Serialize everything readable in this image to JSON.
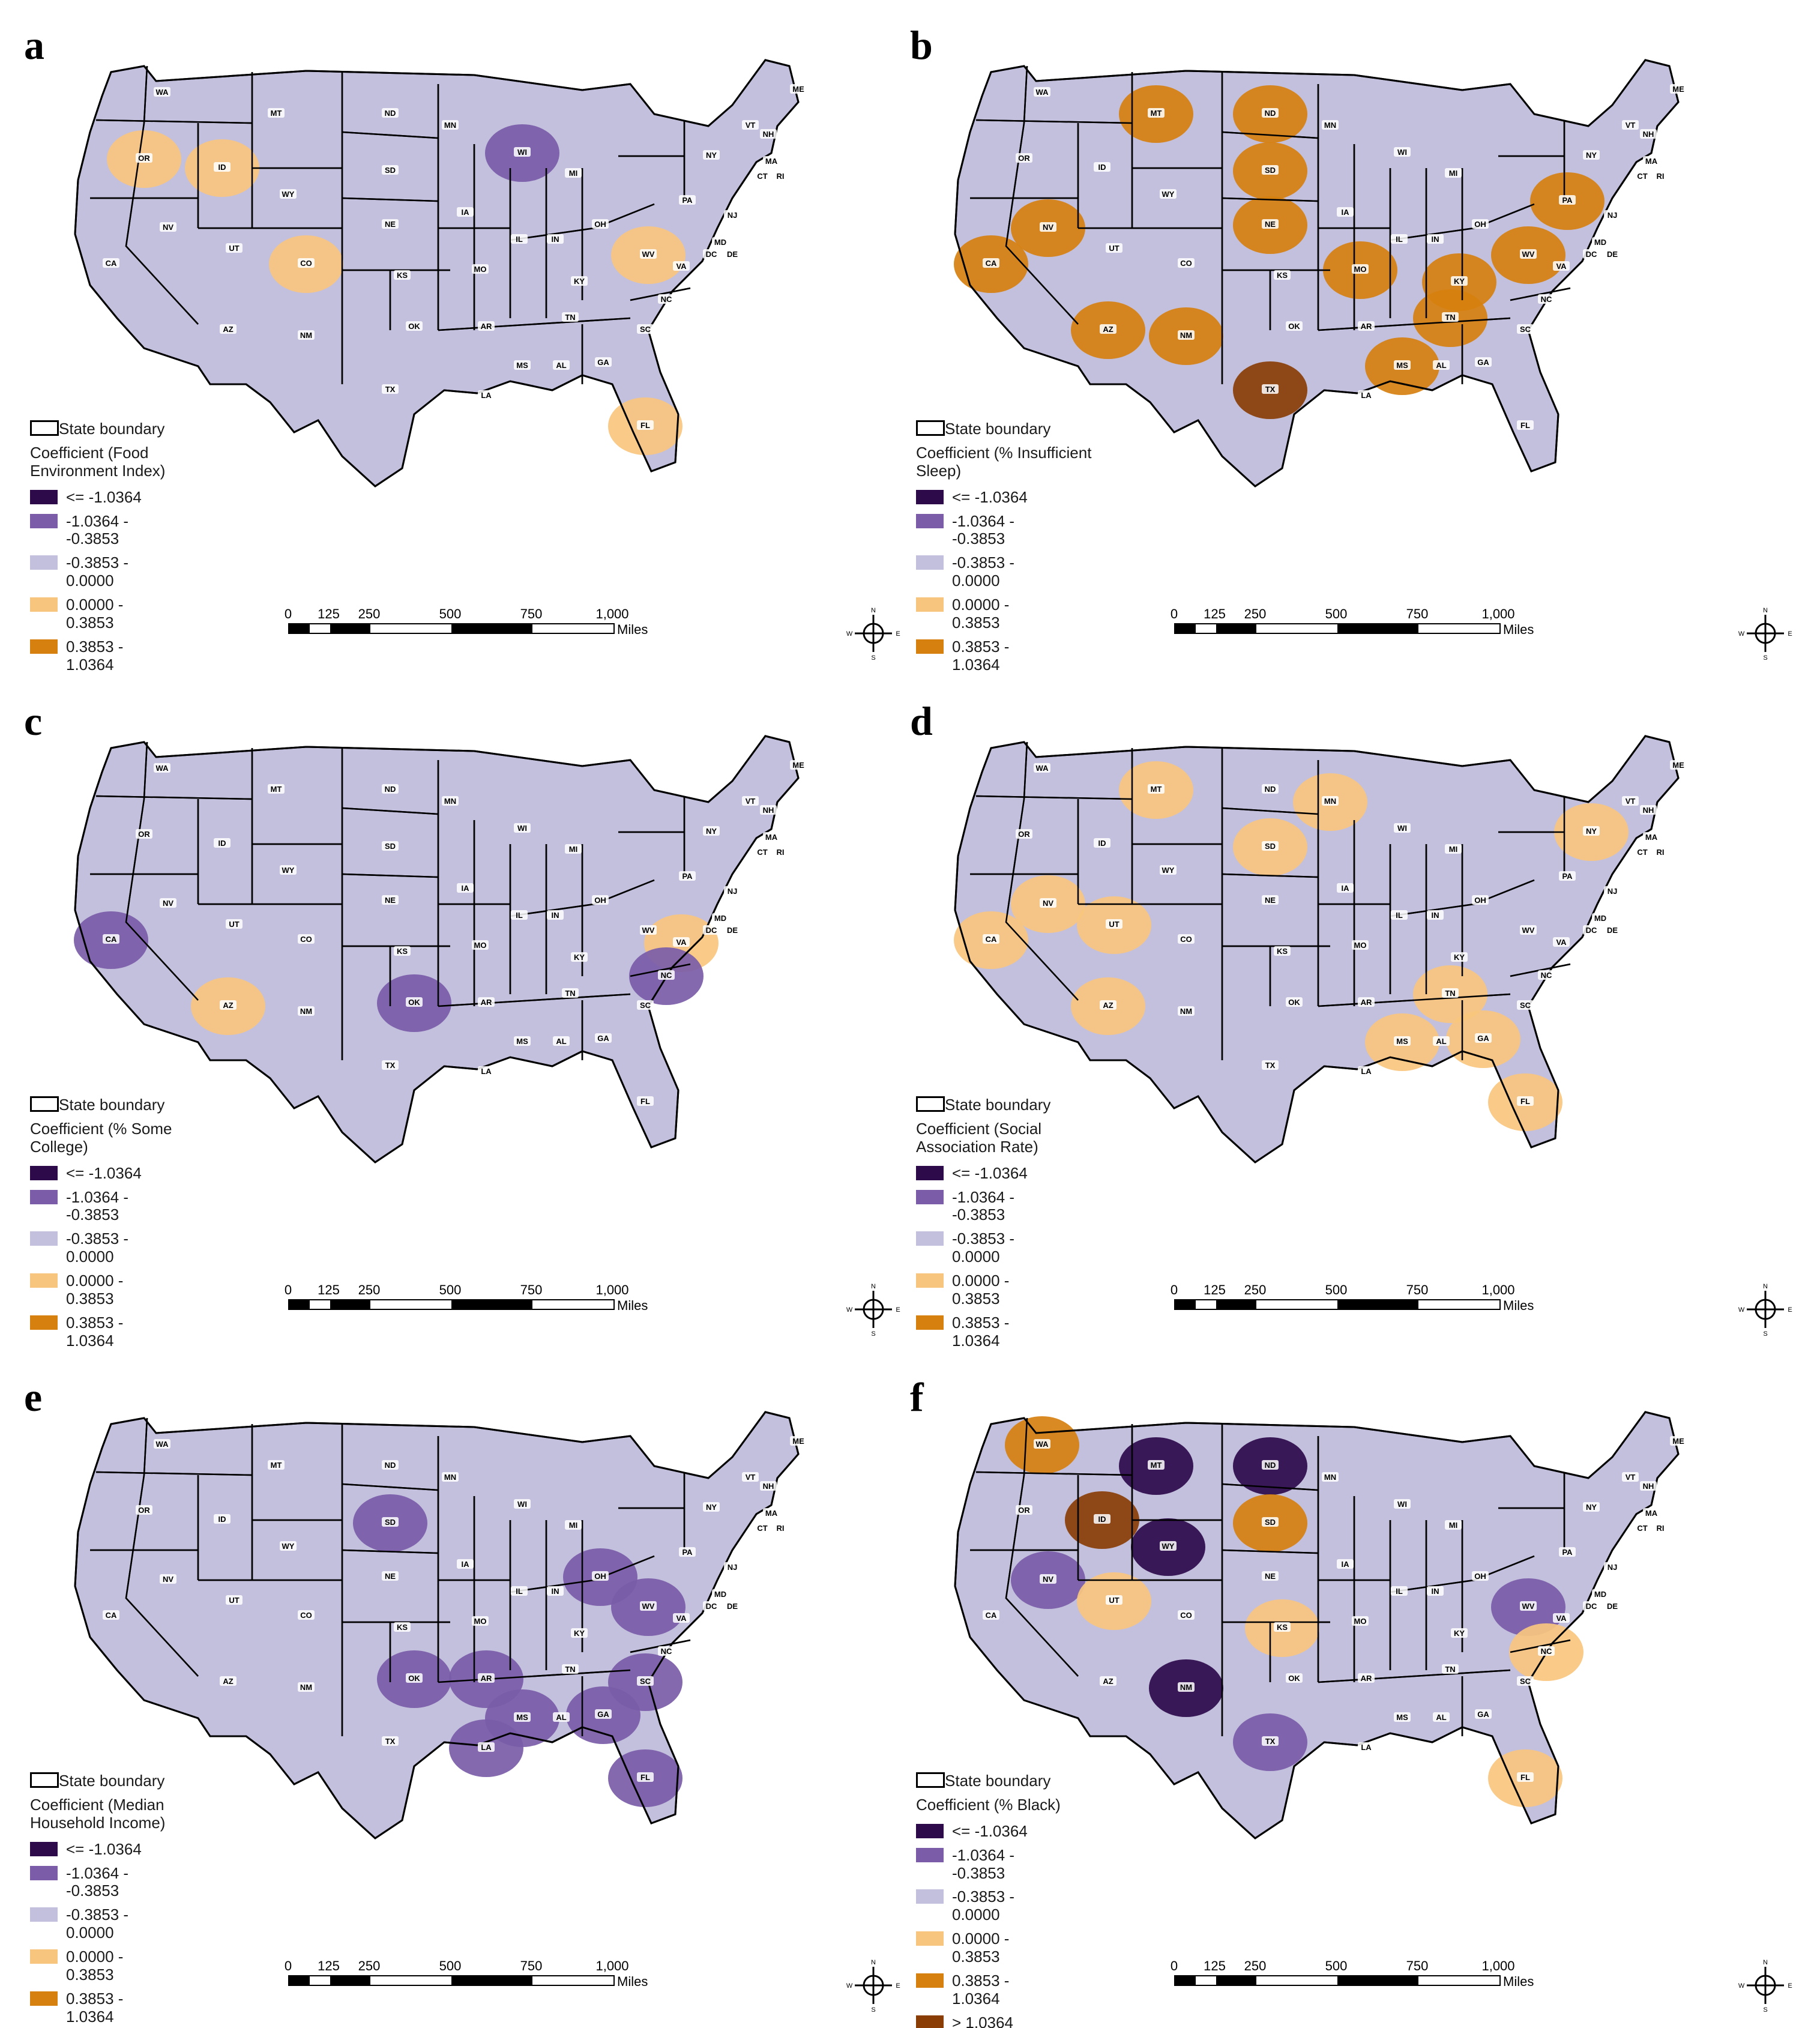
{
  "panels": [
    {
      "letter": "a",
      "legend_title": "Coefficient (Food Environment Index)"
    },
    {
      "letter": "b",
      "legend_title": "Coefficient (% Insufficient Sleep)"
    },
    {
      "letter": "c",
      "legend_title": "Coefficient (% Some College)"
    },
    {
      "letter": "d",
      "legend_title": "Coefficient (Social Association Rate)"
    },
    {
      "letter": "e",
      "legend_title": "Coefficient (Median Household Income)"
    },
    {
      "letter": "f",
      "legend_title": "Coefficient (% Black)"
    }
  ],
  "legend": {
    "boundary_label": "State boundary",
    "classes": [
      {
        "label": "<= -1.0364",
        "color": "#2d0a4a"
      },
      {
        "label": "-1.0364 - -0.3853",
        "color": "#7a5ca8"
      },
      {
        "label": "-0.3853 - 0.0000",
        "color": "#c3c0dd"
      },
      {
        "label": "0.0000 - 0.3853",
        "color": "#f8c57e"
      },
      {
        "label": "0.3853 - 1.0364",
        "color": "#d6800f"
      },
      {
        "label": "> 1.0364",
        "color": "#8a3e05"
      }
    ]
  },
  "scale": {
    "ticks": [
      "0",
      "125",
      "250",
      "500",
      "750",
      "1,000"
    ],
    "units": "Miles"
  },
  "compass": {
    "n": "N",
    "s": "S",
    "e": "E",
    "w": "W"
  },
  "state_labels": [
    "WA",
    "OR",
    "CA",
    "ID",
    "NV",
    "MT",
    "WY",
    "UT",
    "AZ",
    "CO",
    "NM",
    "ND",
    "SD",
    "NE",
    "KS",
    "OK",
    "TX",
    "MN",
    "IA",
    "MO",
    "AR",
    "LA",
    "WI",
    "IL",
    "MI",
    "IN",
    "OH",
    "KY",
    "TN",
    "MS",
    "AL",
    "GA",
    "FL",
    "SC",
    "NC",
    "VA",
    "WV",
    "PA",
    "NY",
    "VT",
    "NH",
    "ME",
    "MA",
    "CT",
    "RI",
    "NJ",
    "MD",
    "DE",
    "DC"
  ],
  "regions": [
    {
      "panel": 0,
      "class": 3,
      "state": "OR"
    },
    {
      "panel": 0,
      "class": 3,
      "state": "ID"
    },
    {
      "panel": 0,
      "class": 3,
      "state": "CO"
    },
    {
      "panel": 0,
      "class": 3,
      "state": "WV"
    },
    {
      "panel": 0,
      "class": 3,
      "state": "FL"
    },
    {
      "panel": 0,
      "class": 1,
      "state": "WI"
    },
    {
      "panel": 1,
      "class": 4,
      "state": "MT"
    },
    {
      "panel": 1,
      "class": 4,
      "state": "ND"
    },
    {
      "panel": 1,
      "class": 4,
      "state": "NV"
    },
    {
      "panel": 1,
      "class": 4,
      "state": "AZ"
    },
    {
      "panel": 1,
      "class": 4,
      "state": "NM"
    },
    {
      "panel": 1,
      "class": 5,
      "state": "TX"
    },
    {
      "panel": 1,
      "class": 4,
      "state": "SD"
    },
    {
      "panel": 1,
      "class": 4,
      "state": "NE"
    },
    {
      "panel": 1,
      "class": 4,
      "state": "MO"
    },
    {
      "panel": 1,
      "class": 4,
      "state": "KY"
    },
    {
      "panel": 1,
      "class": 4,
      "state": "WV"
    },
    {
      "panel": 1,
      "class": 4,
      "state": "MS"
    },
    {
      "panel": 1,
      "class": 4,
      "state": "TN"
    },
    {
      "panel": 1,
      "class": 4,
      "state": "PA"
    },
    {
      "panel": 1,
      "class": 4,
      "state": "CA"
    },
    {
      "panel": 2,
      "class": 1,
      "state": "OK"
    },
    {
      "panel": 2,
      "class": 1,
      "state": "CA"
    },
    {
      "panel": 2,
      "class": 3,
      "state": "AZ"
    },
    {
      "panel": 2,
      "class": 3,
      "state": "VA"
    },
    {
      "panel": 2,
      "class": 1,
      "state": "NC"
    },
    {
      "panel": 3,
      "class": 3,
      "state": "CA"
    },
    {
      "panel": 3,
      "class": 3,
      "state": "NV"
    },
    {
      "panel": 3,
      "class": 3,
      "state": "UT"
    },
    {
      "panel": 3,
      "class": 3,
      "state": "AZ"
    },
    {
      "panel": 3,
      "class": 3,
      "state": "MT"
    },
    {
      "panel": 3,
      "class": 3,
      "state": "SD"
    },
    {
      "panel": 3,
      "class": 3,
      "state": "MN"
    },
    {
      "panel": 3,
      "class": 3,
      "state": "NY"
    },
    {
      "panel": 3,
      "class": 3,
      "state": "FL"
    },
    {
      "panel": 3,
      "class": 3,
      "state": "GA"
    },
    {
      "panel": 3,
      "class": 3,
      "state": "TN"
    },
    {
      "panel": 3,
      "class": 3,
      "state": "MS"
    },
    {
      "panel": 4,
      "class": 1,
      "state": "SD"
    },
    {
      "panel": 4,
      "class": 1,
      "state": "AR"
    },
    {
      "panel": 4,
      "class": 1,
      "state": "LA"
    },
    {
      "panel": 4,
      "class": 1,
      "state": "MS"
    },
    {
      "panel": 4,
      "class": 1,
      "state": "GA"
    },
    {
      "panel": 4,
      "class": 1,
      "state": "FL"
    },
    {
      "panel": 4,
      "class": 1,
      "state": "SC"
    },
    {
      "panel": 4,
      "class": 1,
      "state": "WV"
    },
    {
      "panel": 4,
      "class": 1,
      "state": "OH"
    },
    {
      "panel": 4,
      "class": 1,
      "state": "OK"
    },
    {
      "panel": 5,
      "class": 4,
      "state": "WA"
    },
    {
      "panel": 5,
      "class": 5,
      "state": "ID"
    },
    {
      "panel": 5,
      "class": 0,
      "state": "MT"
    },
    {
      "panel": 5,
      "class": 0,
      "state": "ND"
    },
    {
      "panel": 5,
      "class": 0,
      "state": "WY"
    },
    {
      "panel": 5,
      "class": 0,
      "state": "NM"
    },
    {
      "panel": 5,
      "class": 1,
      "state": "TX"
    },
    {
      "panel": 5,
      "class": 4,
      "state": "SD"
    },
    {
      "panel": 5,
      "class": 1,
      "state": "NV"
    },
    {
      "panel": 5,
      "class": 3,
      "state": "UT"
    },
    {
      "panel": 5,
      "class": 3,
      "state": "FL"
    },
    {
      "panel": 5,
      "class": 1,
      "state": "WV"
    },
    {
      "panel": 5,
      "class": 3,
      "state": "NC"
    },
    {
      "panel": 5,
      "class": 3,
      "state": "KS"
    }
  ]
}
